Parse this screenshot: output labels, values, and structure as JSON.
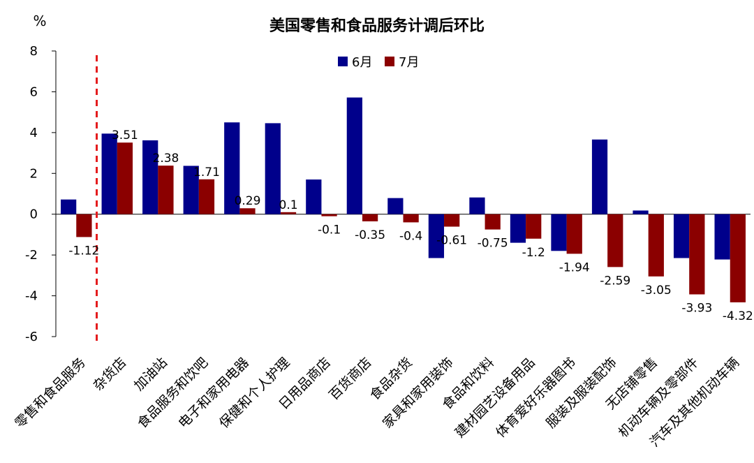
{
  "chart_data": {
    "type": "bar",
    "title": "美国零售和食品服务计调后环比",
    "ylabel": "%",
    "xlabel": "",
    "ylim": [
      -6,
      8
    ],
    "yticks": [
      -6,
      -4,
      -2,
      0,
      2,
      4,
      6,
      8
    ],
    "legend": "top-center",
    "grid": false,
    "reference_line": {
      "after_category_index": 0,
      "color": "#e41a1c",
      "style": "dashed"
    },
    "categories": [
      "零售和食品服务",
      "杂货店",
      "加油站",
      "食品服务和饮吧",
      "电子和家用电器",
      "保健和个人护理",
      "日用品商店",
      "百货商店",
      "食品杂货",
      "家具和家用装饰",
      "食品和饮料",
      "建材园艺设备用品",
      "体育爱好乐器图书",
      "服装及服装配饰",
      "无店铺零售",
      "机动车辆及零部件",
      "汽车及其他机动车辆"
    ],
    "series": [
      {
        "name": "6月",
        "color": "#00008b",
        "values": [
          0.72,
          3.95,
          3.62,
          2.37,
          4.5,
          4.46,
          1.7,
          5.72,
          0.79,
          -2.15,
          0.82,
          -1.4,
          -1.8,
          3.66,
          0.18,
          -2.15,
          -2.22
        ],
        "labels": null
      },
      {
        "name": "7月",
        "color": "#8b0000",
        "values": [
          -1.12,
          3.51,
          2.38,
          1.71,
          0.29,
          0.1,
          -0.1,
          -0.35,
          -0.4,
          -0.61,
          -0.75,
          -1.2,
          -1.94,
          -2.59,
          -3.05,
          -3.93,
          -4.32
        ],
        "labels": [
          "-1.12",
          "3.51",
          "2.38",
          "1.71",
          "0.29",
          "0.1",
          "-0.1",
          "-0.35",
          "-0.4",
          "-0.61",
          "-0.75",
          "-1.2",
          "-1.94",
          "-2.59",
          "-3.05",
          "-3.93",
          "-4.32"
        ]
      }
    ]
  }
}
